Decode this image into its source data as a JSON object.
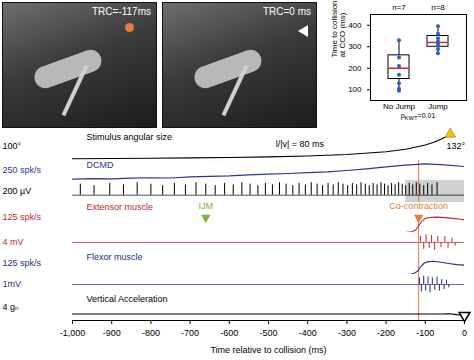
{
  "photos": [
    {
      "label": "TRC=-117ms"
    },
    {
      "label": "TRC=0 ms"
    }
  ],
  "chart_data": [
    {
      "type": "box",
      "ylabel": "Time to collision at CCO (ms)",
      "categories": [
        "No Jump",
        "Jump"
      ],
      "n_labels": [
        "n=7",
        "n=8"
      ],
      "stats": [
        {
          "min": 90,
          "q1": 150,
          "median": 200,
          "q3": 260,
          "max": 330
        },
        {
          "min": 265,
          "q1": 300,
          "median": 320,
          "q3": 350,
          "max": 400
        }
      ],
      "points": [
        [
          95,
          105,
          130,
          170,
          210,
          250,
          330
        ],
        [
          270,
          290,
          305,
          315,
          325,
          340,
          360,
          395
        ]
      ],
      "point_color": "#2f62b5",
      "median_color": "#d62728",
      "ylim": [
        50,
        450
      ],
      "yticks": [
        100,
        200,
        300,
        400
      ],
      "annotation": {
        "text": "p",
        "subscript": "KWT",
        "suffix": "=0.01"
      }
    },
    {
      "type": "traces",
      "xlabel": "Time relative to collision (ms)",
      "xlim": [
        -1000,
        0
      ],
      "xticks": [
        {
          "value": -1000,
          "label": "-1,000"
        },
        -900,
        -800,
        -700,
        -600,
        -500,
        -400,
        -300,
        -200,
        -100,
        0
      ],
      "events": [
        {
          "label": "IJM",
          "x": -660,
          "color": "#79b543"
        },
        {
          "label": "Co-contraction",
          "x": -117,
          "color": "#e57c3c",
          "line_style": "solid"
        }
      ],
      "tracks": [
        {
          "type": "line",
          "name": "Stimulus angular size",
          "scale_label": "100°",
          "color": "#000000",
          "ylim": [
            0,
            140
          ],
          "x": [
            -1000,
            -900,
            -800,
            -700,
            -600,
            -500,
            -400,
            -300,
            -200,
            -150,
            -100,
            -80,
            -60,
            -50,
            -40,
            -36
          ],
          "values": [
            9.1,
            10.2,
            11.4,
            13.0,
            15.2,
            18.2,
            22.6,
            29.9,
            43.6,
            56.1,
            77.3,
            90,
            106,
            116,
            127,
            132
          ],
          "annotation": {
            "text": "l/|v| = 80 ms",
            "x": -420,
            "y": 80
          },
          "end_marker": {
            "x": -36,
            "y": 132,
            "label": "132°",
            "color": "#f2c200"
          }
        },
        {
          "type": "line",
          "name": "DCMD",
          "scale_label": "250 spk/s",
          "color": "#2b3990",
          "ylim": [
            0,
            300
          ],
          "x": [
            -1000,
            -950,
            -900,
            -850,
            -800,
            -750,
            -700,
            -650,
            -600,
            -550,
            -500,
            -450,
            -400,
            -350,
            -300,
            -250,
            -200,
            -150,
            -100,
            -50,
            0
          ],
          "values": [
            20,
            28,
            24,
            35,
            42,
            38,
            55,
            62,
            70,
            85,
            95,
            105,
            118,
            130,
            150,
            175,
            205,
            230,
            250,
            235,
            210
          ]
        },
        {
          "type": "spikes",
          "scale_label": "200 µV",
          "color": "#000000",
          "ylim": [
            -100,
            200
          ],
          "baseline": 0,
          "highlight": [
            -150,
            0
          ],
          "x": [
            -980,
            -945,
            -905,
            -870,
            -835,
            -800,
            -770,
            -740,
            -712,
            -685,
            -660,
            -636,
            -612,
            -590,
            -568,
            -547,
            -527,
            -508,
            -490,
            -472,
            -455,
            -438,
            -422,
            -406,
            -391,
            -376,
            -362,
            -348,
            -335,
            -322,
            -310,
            -298,
            -286,
            -275,
            -264,
            -253,
            -243,
            -233,
            -223,
            -213,
            -204,
            -195,
            -186,
            -177,
            -168,
            -159,
            -150,
            -141,
            -132,
            -123,
            -114,
            -104,
            -94,
            -83,
            -70
          ],
          "values": [
            150,
            130,
            160,
            140,
            170,
            150,
            130,
            160,
            140,
            170,
            150,
            130,
            160,
            140,
            170,
            150,
            130,
            160,
            140,
            170,
            150,
            130,
            160,
            140,
            170,
            150,
            130,
            160,
            140,
            170,
            150,
            130,
            160,
            140,
            170,
            150,
            130,
            160,
            140,
            170,
            150,
            130,
            160,
            140,
            170,
            150,
            130,
            160,
            140,
            170,
            150,
            130,
            160,
            140,
            170
          ]
        },
        {
          "type": "line",
          "name": "Extensor muscle",
          "scale_label": "125 spk/s",
          "color": "#c1272d",
          "ylim": [
            0,
            250
          ],
          "x": [
            -1000,
            -150,
            -135,
            -125,
            -118,
            -110,
            -100,
            -90,
            -70,
            -50,
            -30,
            -10,
            0
          ],
          "values": [
            0,
            0,
            5,
            20,
            50,
            90,
            118,
            125,
            128,
            124,
            118,
            110,
            105
          ]
        },
        {
          "type": "spikes",
          "scale_label": "4 mV",
          "color": "#c1272d",
          "ylim": [
            -5,
            5
          ],
          "baseline": 0,
          "x": [
            -112,
            -104,
            -98,
            -90,
            -84,
            -76,
            -68,
            -60,
            -50,
            -42,
            -32,
            -24
          ],
          "values": [
            3,
            -3.5,
            3.8,
            -3,
            3.5,
            -4,
            3,
            -2.5,
            3,
            -2.8,
            2.2,
            -1.8
          ]
        },
        {
          "type": "line",
          "name": "Flexor muscle",
          "scale_label": "125 spk/s",
          "color": "#262d7d",
          "ylim": [
            0,
            200
          ],
          "x": [
            -1000,
            -140,
            -130,
            -120,
            -112,
            -104,
            -95,
            -80,
            -60,
            -40,
            -20,
            0
          ],
          "values": [
            0,
            0,
            8,
            30,
            70,
            100,
            115,
            120,
            112,
            100,
            90,
            85
          ]
        },
        {
          "type": "spikes",
          "scale_label": "1mV",
          "color": "#262d7d",
          "ylim": [
            -1.2,
            1.2
          ],
          "baseline": 0,
          "x": [
            -115,
            -110,
            -104,
            -99,
            -93,
            -88,
            -82,
            -76,
            -70,
            -64,
            -58,
            -52,
            -46,
            -40
          ],
          "values": [
            0.8,
            -0.9,
            1,
            -0.8,
            0.9,
            -1,
            0.8,
            -0.7,
            0.9,
            -0.8,
            0.6,
            -0.6,
            0.5,
            -0.4
          ]
        },
        {
          "type": "line",
          "name": "Vertical Acceleration",
          "scale_label": "4 gₙ",
          "color": "#000000",
          "ylim": [
            -2,
            6
          ],
          "x": [
            -1000,
            -60,
            -40,
            -20,
            0
          ],
          "values": [
            0,
            0,
            0.1,
            -0.2,
            -0.4
          ]
        }
      ]
    }
  ]
}
